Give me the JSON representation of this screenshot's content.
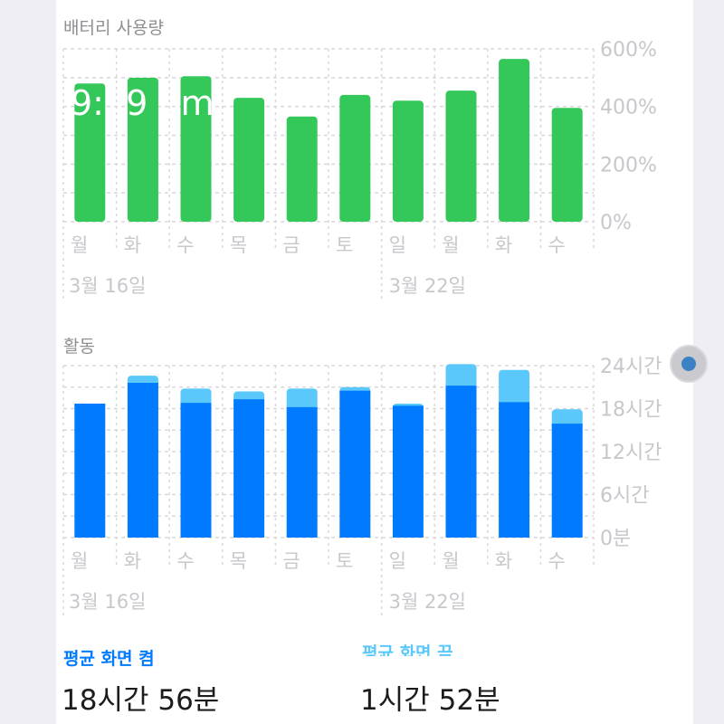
{
  "battery": {
    "title": "배터리 사용량",
    "y_ticks": [
      "600%",
      "400%",
      "200%",
      "0%"
    ],
    "overlay_time": "9:  9 pm"
  },
  "activity": {
    "title": "활동",
    "y_ticks": [
      "24시간",
      "18시간",
      "12시간",
      "6시간",
      "0분"
    ]
  },
  "days": [
    "월",
    "화",
    "수",
    "목",
    "금",
    "토",
    "일",
    "월",
    "화",
    "수"
  ],
  "dates": [
    "3월 16일",
    "3월 22일"
  ],
  "stats": {
    "screen_on_label": "평균 화면 켬",
    "screen_on_value": "18시간 56분",
    "screen_off_label": "평균 화면 끔",
    "screen_off_value": "1시간 52분"
  },
  "colors": {
    "battery_bar": "#34c759",
    "screen_on": "#007aff",
    "screen_off": "#5ac8fa",
    "grid": "#d8d8dc"
  },
  "chart_data": [
    {
      "type": "bar",
      "title": "배터리 사용량",
      "categories": [
        "월",
        "화",
        "수",
        "목",
        "금",
        "토",
        "일",
        "월",
        "화",
        "수"
      ],
      "values": [
        480,
        500,
        505,
        430,
        365,
        440,
        420,
        455,
        565,
        395
      ],
      "ylim": [
        0,
        600
      ],
      "y_unit": "%",
      "grid": true
    },
    {
      "type": "bar",
      "title": "활동",
      "stacked": true,
      "categories": [
        "월",
        "화",
        "수",
        "목",
        "금",
        "토",
        "일",
        "월",
        "화",
        "수"
      ],
      "ylim": [
        0,
        24
      ],
      "y_unit": "시간",
      "grid": true,
      "series": [
        {
          "name": "평균 화면 켬",
          "values": [
            18.7,
            21.6,
            18.8,
            19.3,
            18.2,
            20.5,
            18.4,
            21.2,
            18.9,
            15.9
          ]
        },
        {
          "name": "평균 화면 끔",
          "values": [
            0.0,
            1.0,
            2.0,
            1.1,
            2.6,
            0.5,
            0.3,
            3.0,
            4.5,
            2.0
          ]
        }
      ]
    }
  ]
}
